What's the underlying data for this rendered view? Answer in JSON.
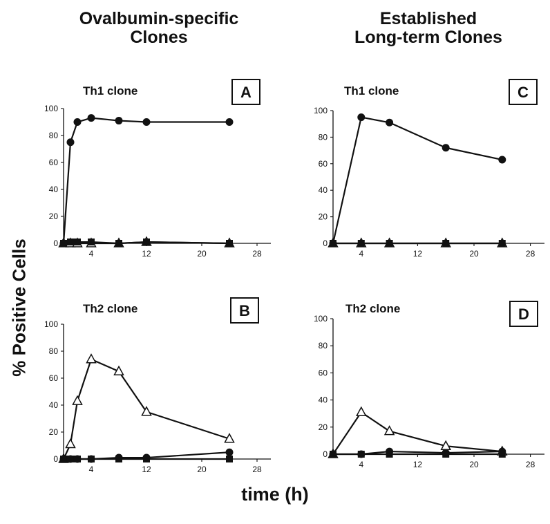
{
  "column_titles": {
    "left": [
      "Ovalbumin-specific",
      "Clones"
    ],
    "right": [
      "Established",
      "Long-term Clones"
    ]
  },
  "y_axis_label": "% Positive Cells",
  "x_axis_label": "time (h)",
  "colors": {
    "ink": "#111111",
    "background": "#ffffff"
  },
  "chart_data": [
    {
      "id": "A",
      "type": "line",
      "title": "Th1 clone",
      "panel_letter": "A",
      "xlim": [
        0,
        30
      ],
      "ylim": [
        0,
        100
      ],
      "xticks": [
        4,
        12,
        20,
        28
      ],
      "yticks": [
        0,
        20,
        40,
        60,
        80,
        100
      ],
      "series": [
        {
          "marker": "circle",
          "x": [
            0,
            1,
            2,
            4,
            8,
            12,
            24
          ],
          "y": [
            0,
            75,
            90,
            93,
            91,
            90,
            90
          ]
        },
        {
          "marker": "triangle",
          "x": [
            0,
            1,
            2,
            4,
            8,
            12,
            24
          ],
          "y": [
            0,
            0,
            0,
            0,
            0,
            1,
            0
          ]
        },
        {
          "marker": "square",
          "x": [
            0,
            1,
            2,
            4,
            8,
            12,
            24
          ],
          "y": [
            0,
            1,
            1,
            1,
            0,
            1,
            0
          ]
        }
      ]
    },
    {
      "id": "B",
      "type": "line",
      "title": "Th2 clone",
      "panel_letter": "B",
      "xlim": [
        0,
        30
      ],
      "ylim": [
        0,
        100
      ],
      "xticks": [
        4,
        12,
        20,
        28
      ],
      "yticks": [
        0,
        20,
        40,
        60,
        80,
        100
      ],
      "series": [
        {
          "marker": "triangle",
          "x": [
            0,
            1,
            2,
            4,
            8,
            12,
            24
          ],
          "y": [
            0,
            11,
            43,
            74,
            65,
            35,
            15
          ]
        },
        {
          "marker": "circle",
          "x": [
            0,
            1,
            2,
            4,
            8,
            12,
            24
          ],
          "y": [
            0,
            0,
            0,
            0,
            1,
            1,
            5
          ]
        },
        {
          "marker": "square",
          "x": [
            0,
            1,
            2,
            4,
            8,
            12,
            24
          ],
          "y": [
            0,
            0,
            0,
            0,
            0,
            0,
            0
          ]
        }
      ]
    },
    {
      "id": "C",
      "type": "line",
      "title": "Th1 clone",
      "panel_letter": "C",
      "xlim": [
        0,
        30
      ],
      "ylim": [
        0,
        100
      ],
      "xticks": [
        4,
        12,
        20,
        28
      ],
      "yticks": [
        0,
        20,
        40,
        60,
        80,
        100
      ],
      "series": [
        {
          "marker": "circle",
          "x": [
            0,
            4,
            8,
            16,
            24
          ],
          "y": [
            0,
            95,
            91,
            72,
            63
          ]
        },
        {
          "marker": "triangle",
          "x": [
            0,
            4,
            8,
            16,
            24
          ],
          "y": [
            0,
            0,
            0,
            0,
            0
          ]
        },
        {
          "marker": "square",
          "x": [
            0,
            4,
            8,
            16,
            24
          ],
          "y": [
            0,
            0,
            0,
            0,
            0
          ]
        }
      ]
    },
    {
      "id": "D",
      "type": "line",
      "title": "Th2 clone",
      "panel_letter": "D",
      "xlim": [
        0,
        30
      ],
      "ylim": [
        0,
        100
      ],
      "xticks": [
        4,
        12,
        20,
        28
      ],
      "yticks": [
        0,
        20,
        40,
        60,
        80,
        100
      ],
      "series": [
        {
          "marker": "triangle",
          "x": [
            0,
            4,
            8,
            16,
            24
          ],
          "y": [
            0,
            31,
            17,
            6,
            2
          ]
        },
        {
          "marker": "circle",
          "x": [
            0,
            4,
            8,
            16,
            24
          ],
          "y": [
            0,
            0,
            2,
            1,
            2
          ]
        },
        {
          "marker": "square",
          "x": [
            0,
            4,
            8,
            16,
            24
          ],
          "y": [
            0,
            0,
            0,
            0,
            0
          ]
        }
      ]
    }
  ]
}
